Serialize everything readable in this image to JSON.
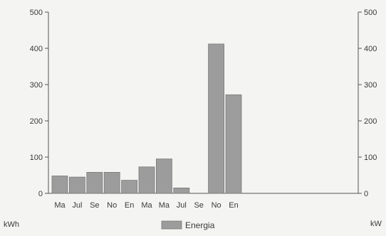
{
  "chart_data": {
    "type": "bar",
    "categories": [
      "Ma",
      "Jul",
      "Se",
      "No",
      "En",
      "Ma",
      "Ma",
      "Jul",
      "Se",
      "No",
      "En"
    ],
    "series": [
      {
        "name": "Energia",
        "values": [
          48,
          45,
          58,
          58,
          36,
          73,
          95,
          15,
          0,
          412,
          272
        ]
      }
    ],
    "xlabel": "",
    "ylabel_left": "kWh",
    "ylabel_right": "kW",
    "ylim": [
      0,
      500
    ],
    "yticks": [
      0,
      100,
      200,
      300,
      400,
      500
    ],
    "grid": false,
    "legend": "bottom-center",
    "colors": {
      "bar_fill": "#9c9c9c",
      "bar_stroke": "#7a7a7a",
      "axis": "#555555",
      "background": "#f4f4f2"
    }
  }
}
